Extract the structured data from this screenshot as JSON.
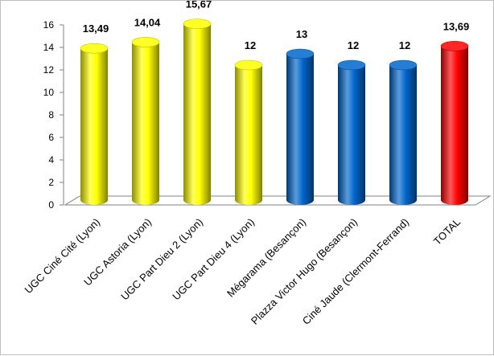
{
  "chart_data": {
    "type": "bar",
    "style": "3d-cylinder",
    "categories": [
      "UGC Ciné Cité (Lyon)",
      "UGC Astoria (Lyon)",
      "UGC Part Dieu 2 (Lyon)",
      "UGC Part Dieu 4 (Lyon)",
      "Mégarama (Besançon)",
      "Plazza Victor Hugo (Besançon)",
      "Ciné Jaude (Clermont-Ferrand)",
      "TOTAL"
    ],
    "values": [
      13.49,
      14.04,
      15.67,
      12,
      13,
      12,
      12,
      13.69
    ],
    "data_labels": [
      "13,49",
      "14,04",
      "15,67",
      "12",
      "13",
      "12",
      "12",
      "13,69"
    ],
    "colors": [
      "#ffff00",
      "#ffff00",
      "#ffff00",
      "#ffff00",
      "#0066cc",
      "#0066cc",
      "#0066cc",
      "#ff0000"
    ],
    "ylim": [
      0,
      16
    ],
    "yticks": [
      0,
      2,
      4,
      6,
      8,
      10,
      12,
      14,
      16
    ],
    "ytick_labels": [
      "0",
      "2",
      "4",
      "6",
      "8",
      "10",
      "12",
      "14",
      "16"
    ],
    "grid": false,
    "legend": "none",
    "title": "",
    "xlabel": "",
    "ylabel": ""
  }
}
